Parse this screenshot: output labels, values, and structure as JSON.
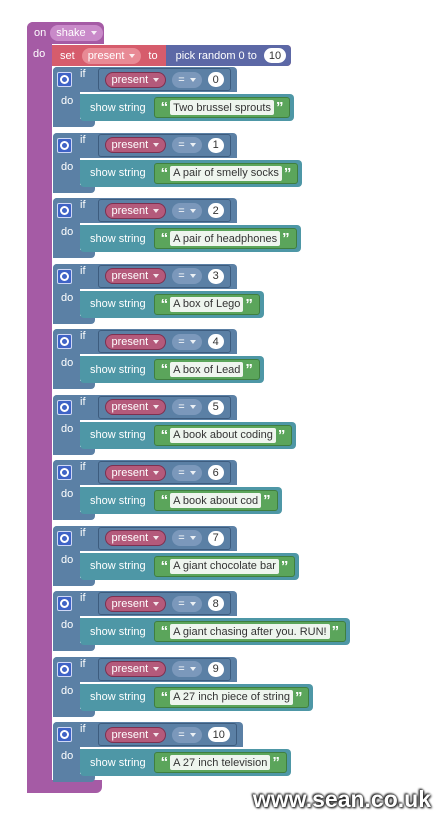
{
  "event": {
    "keyword": "on",
    "gesture": "shake",
    "do": "do"
  },
  "set_block": {
    "keyword": "set",
    "variable": "present",
    "to": "to",
    "function": "pick random 0 to",
    "max": 10
  },
  "labels": {
    "if": "if",
    "do": "do",
    "variable": "present",
    "operator": "=",
    "action": "show string",
    "quote_open": "“",
    "quote_close": "”"
  },
  "if_blocks": [
    {
      "value": 0,
      "text": "Two brussel sprouts"
    },
    {
      "value": 1,
      "text": "A pair of smelly socks"
    },
    {
      "value": 2,
      "text": "A pair of headphones"
    },
    {
      "value": 3,
      "text": "A box of Lego"
    },
    {
      "value": 4,
      "text": "A box of Lead"
    },
    {
      "value": 5,
      "text": "A book about coding"
    },
    {
      "value": 6,
      "text": "A book about cod"
    },
    {
      "value": 7,
      "text": "A giant chocolate bar"
    },
    {
      "value": 8,
      "text": "A giant chasing after you. RUN!"
    },
    {
      "value": 9,
      "text": "A 27 inch piece of string"
    },
    {
      "value": 10,
      "text": "A 27 inch television"
    }
  ],
  "watermark": "www.sean.co.uk"
}
